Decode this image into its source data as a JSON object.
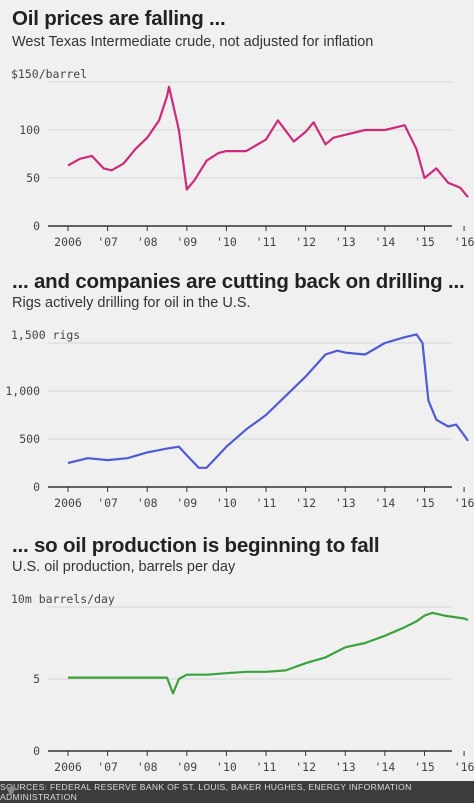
{
  "footer": {
    "sources": "SOURCES: FEDERAL RESERVE BANK OF ST. LOUIS, BAKER HUGHES, ENERGY INFORMATION ADMINISTRATION"
  },
  "chart_data": [
    {
      "type": "line",
      "title": "Oil prices are falling ...",
      "subtitle": "West Texas Intermediate crude, not adjusted for inflation",
      "color": "#cc2a7a",
      "xlim": [
        2006,
        2016.2
      ],
      "ylim": [
        0,
        150
      ],
      "yticks": [
        0,
        50,
        100,
        150
      ],
      "ytick_labels": [
        "0",
        "50",
        "100",
        "$150/barrel"
      ],
      "xticks": [
        2006,
        2007,
        2008,
        2009,
        2010,
        2011,
        2012,
        2013,
        2014,
        2015,
        2016
      ],
      "xtick_labels": [
        "2006",
        "'07",
        "'08",
        "'09",
        "'10",
        "'11",
        "'12",
        "'13",
        "'14",
        "'15",
        "'16"
      ],
      "x": [
        2006.0,
        2006.3,
        2006.6,
        2006.9,
        2007.1,
        2007.4,
        2007.7,
        2008.0,
        2008.3,
        2008.5,
        2008.55,
        2008.8,
        2009.0,
        2009.2,
        2009.5,
        2009.8,
        2010.0,
        2010.5,
        2011.0,
        2011.3,
        2011.7,
        2012.0,
        2012.2,
        2012.5,
        2012.7,
        2013.0,
        2013.5,
        2014.0,
        2014.5,
        2014.8,
        2015.0,
        2015.3,
        2015.6,
        2015.9,
        2016.1
      ],
      "values": [
        63,
        70,
        73,
        60,
        58,
        65,
        80,
        92,
        110,
        135,
        145,
        100,
        38,
        48,
        68,
        76,
        78,
        78,
        90,
        110,
        88,
        98,
        108,
        85,
        92,
        95,
        100,
        100,
        105,
        80,
        50,
        60,
        45,
        40,
        30
      ]
    },
    {
      "type": "line",
      "title": "... and companies are cutting back on drilling ...",
      "subtitle": "Rigs actively drilling for oil in the U.S.",
      "color": "#4f5bd5",
      "xlim": [
        2006,
        2016.2
      ],
      "ylim": [
        0,
        1500
      ],
      "yticks": [
        0,
        500,
        1000,
        1500
      ],
      "ytick_labels": [
        "0",
        "500",
        "1,000",
        "1,500 rigs"
      ],
      "xticks": [
        2006,
        2007,
        2008,
        2009,
        2010,
        2011,
        2012,
        2013,
        2014,
        2015,
        2016
      ],
      "xtick_labels": [
        "2006",
        "'07",
        "'08",
        "'09",
        "'10",
        "'11",
        "'12",
        "'13",
        "'14",
        "'15",
        "'16"
      ],
      "x": [
        2006.0,
        2006.5,
        2007.0,
        2007.5,
        2008.0,
        2008.5,
        2008.8,
        2009.0,
        2009.3,
        2009.5,
        2010.0,
        2010.5,
        2011.0,
        2011.5,
        2012.0,
        2012.5,
        2012.8,
        2013.0,
        2013.5,
        2014.0,
        2014.5,
        2014.8,
        2014.95,
        2015.1,
        2015.3,
        2015.6,
        2015.8,
        2016.0,
        2016.1
      ],
      "values": [
        250,
        300,
        280,
        300,
        360,
        400,
        420,
        330,
        200,
        200,
        420,
        600,
        750,
        950,
        1150,
        1380,
        1420,
        1400,
        1380,
        1500,
        1560,
        1590,
        1500,
        900,
        700,
        630,
        650,
        540,
        480
      ]
    },
    {
      "type": "line",
      "title": "... so oil production is beginning to fall",
      "subtitle": "U.S. oil production, barrels per day",
      "color": "#3aa33a",
      "xlim": [
        2006,
        2016.2
      ],
      "ylim": [
        0,
        10
      ],
      "yticks": [
        0,
        5,
        10
      ],
      "ytick_labels": [
        "0",
        "5",
        "10m barrels/day"
      ],
      "xticks": [
        2006,
        2007,
        2008,
        2009,
        2010,
        2011,
        2012,
        2013,
        2014,
        2015,
        2016
      ],
      "xtick_labels": [
        "2006",
        "'07",
        "'08",
        "'09",
        "'10",
        "'11",
        "'12",
        "'13",
        "'14",
        "'15",
        "'16"
      ],
      "x": [
        2006.0,
        2006.5,
        2007.0,
        2007.5,
        2008.0,
        2008.5,
        2008.65,
        2008.8,
        2009.0,
        2009.5,
        2010.0,
        2010.5,
        2011.0,
        2011.5,
        2012.0,
        2012.5,
        2013.0,
        2013.5,
        2014.0,
        2014.5,
        2014.8,
        2015.0,
        2015.2,
        2015.5,
        2016.0,
        2016.1
      ],
      "values": [
        5.1,
        5.1,
        5.1,
        5.1,
        5.1,
        5.1,
        4.0,
        5.0,
        5.3,
        5.3,
        5.4,
        5.5,
        5.5,
        5.6,
        6.1,
        6.5,
        7.2,
        7.5,
        8.0,
        8.6,
        9.0,
        9.4,
        9.6,
        9.4,
        9.2,
        9.1
      ]
    }
  ]
}
